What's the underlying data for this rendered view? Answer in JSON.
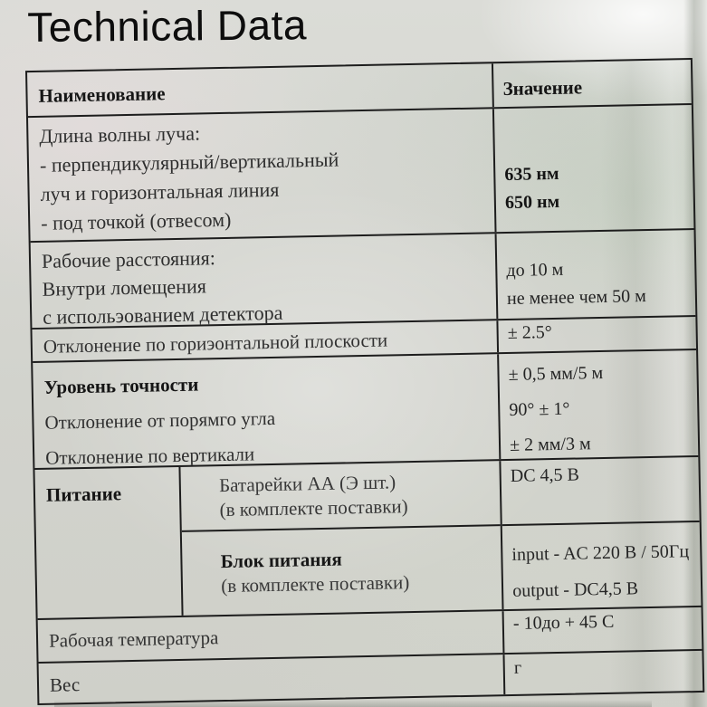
{
  "photo": {
    "caption_title": "Technical Data"
  },
  "colors": {
    "ink": "#1d1d1d",
    "paper": "#d3d4cf"
  },
  "table": {
    "header": {
      "name": "Наименование",
      "value": "Значение"
    },
    "wavelength": {
      "name_lines": [
        "Длина волны луча:",
        "- перпендикулярный/вертикальный",
        "луч и горизонтальная линия",
        "- под точкой (отвесом)"
      ],
      "values": [
        "635 нм",
        "650 нм"
      ]
    },
    "distance": {
      "name_lines": [
        "Рабочие расстояния:",
        "Внутри ломещения",
        "с испольэованием детектора"
      ],
      "values": [
        "до 10 м",
        "не менее чем 50 м"
      ]
    },
    "horizontal": {
      "name": "Отклонение по гориэонтальной плоскости",
      "value": "± 2.5°"
    },
    "accuracy": {
      "name_lines": [
        "Уровень точности",
        "Отклонение от порямго угла",
        "Отклонение по вертикали"
      ],
      "values": [
        "± 0,5 мм/5 м",
        "90° ± 1°",
        "± 2 мм/3 м"
      ]
    },
    "power": {
      "label": "Питание",
      "battery": {
        "name_lines": [
          "Батарейки АА (Э шт.)",
          "(в комплекте поставки)"
        ],
        "value": "DC 4,5 В"
      },
      "adapter": {
        "name_lines": [
          "Блок питания",
          "(в комплекте поставки)"
        ],
        "values": [
          "input - AC 220 В / 50Гц",
          "output - DC4,5 В"
        ]
      }
    },
    "temperature": {
      "name": "Рабочая температура",
      "value": "- 10до + 45 С"
    },
    "weight": {
      "name": "Вес",
      "value": "г"
    }
  }
}
